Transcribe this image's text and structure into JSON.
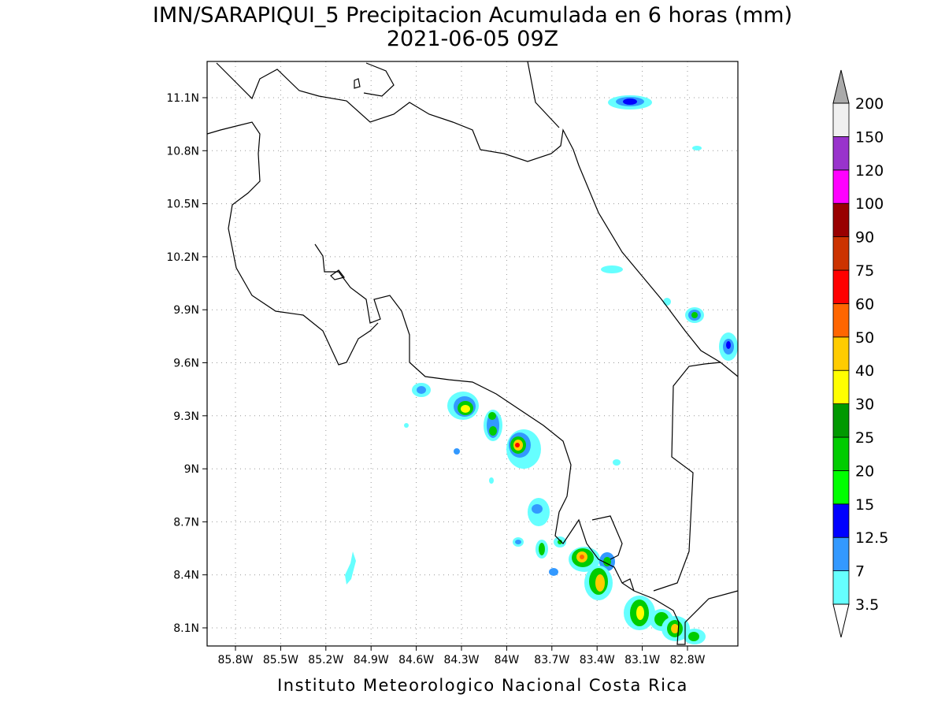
{
  "header": {
    "title": "IMN/SARAPIQUI_5 Precipitacion Acumulada en 6 horas (mm)",
    "subtitle": "2021-06-05 09Z"
  },
  "map": {
    "lat_ticks": [
      "11.1N",
      "10.8N",
      "10.5N",
      "10.2N",
      "9.9N",
      "9.6N",
      "9.3N",
      "9N",
      "8.7N",
      "8.4N",
      "8.1N"
    ],
    "lon_ticks": [
      "85.8W",
      "85.5W",
      "85.2W",
      "84.9W",
      "84.6W",
      "84.3W",
      "84W",
      "83.7W",
      "83.4W",
      "83.1W",
      "82.8W"
    ]
  },
  "colorbar": {
    "levels": [
      "3.5",
      "7",
      "12.5",
      "15",
      "20",
      "25",
      "30",
      "40",
      "50",
      "60",
      "75",
      "90",
      "100",
      "120",
      "150",
      "200"
    ],
    "colors": [
      "#66ffff",
      "#3399ff",
      "#0000ff",
      "#00ff00",
      "#00cc00",
      "#009900",
      "#ffff00",
      "#ffcc00",
      "#ff6600",
      "#ff0000",
      "#cc3300",
      "#990000",
      "#ff00ff",
      "#9933cc",
      "#f0f0f0"
    ],
    "over_color": "#aaaaaa",
    "under_color": "#ffffff"
  },
  "footer": {
    "credit": "Instituto Meteorologico Nacional Costa Rica"
  }
}
